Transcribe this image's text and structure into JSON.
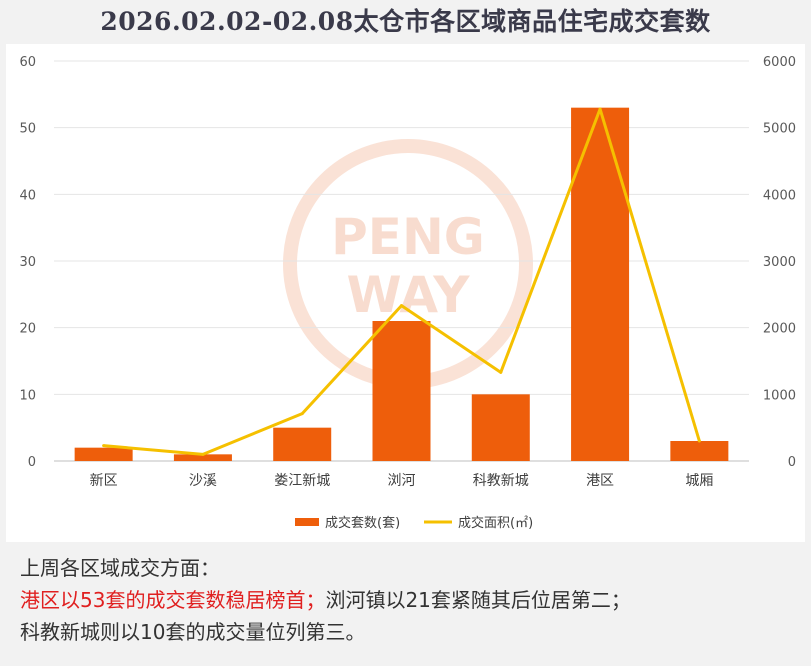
{
  "title": "2026.02.02-02.08太仓市各区域商品住宅成交套数",
  "watermark": {
    "line1": "PENG",
    "line2": "WAY"
  },
  "chart_data": {
    "type": "bar",
    "categories": [
      "新区",
      "沙溪",
      "娄江新城",
      "浏河",
      "科教新城",
      "港区",
      "城厢"
    ],
    "series": [
      {
        "name": "成交套数(套)",
        "type": "bar",
        "axis": "left",
        "color": "#ee5e0b",
        "values": [
          2,
          1,
          5,
          21,
          10,
          53,
          3
        ]
      },
      {
        "name": "成交面积(㎡)",
        "type": "line",
        "axis": "right",
        "color": "#f5c000",
        "values": [
          230,
          100,
          710,
          2330,
          1330,
          5280,
          300
        ]
      }
    ],
    "left_axis": {
      "min": 0,
      "max": 60,
      "ticks": [
        0,
        10,
        20,
        30,
        40,
        50,
        60
      ]
    },
    "right_axis": {
      "min": 0,
      "max": 6000,
      "ticks": [
        0,
        1000,
        2000,
        3000,
        4000,
        5000,
        6000
      ]
    },
    "grid": true,
    "legend_position": "bottom"
  },
  "caption": {
    "line1": "上周各区域成交方面：",
    "line2_highlight": "港区以53套的成交套数稳居榜首；",
    "line2_rest": "浏河镇以21套紧随其后位居第二；",
    "line3": "科教新城则以10套的成交量位列第三。"
  }
}
